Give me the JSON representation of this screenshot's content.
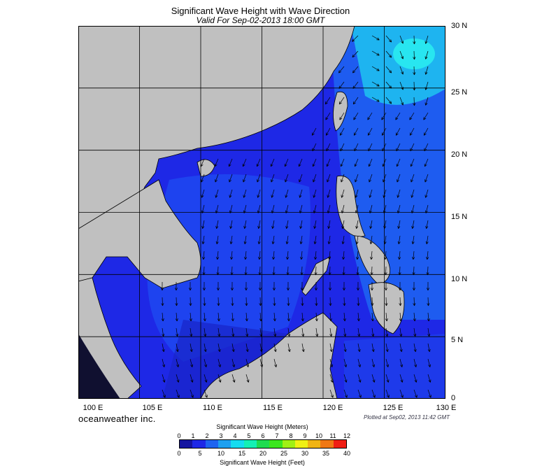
{
  "title": "Significant Wave Height with Wave Direction",
  "subtitle": "Valid For Sep-02-2013 18:00 GMT",
  "brand": "oceanweather inc.",
  "plotted": "Plotted at Sep02, 2013 11:42 GMT",
  "lat_labels": [
    "30 N",
    "25 N",
    "20 N",
    "15 N",
    "10 N",
    "5 N",
    "0"
  ],
  "lon_labels": [
    "100 E",
    "105 E",
    "110 E",
    "115 E",
    "120 E",
    "125 E",
    "130 E"
  ],
  "colorbar": {
    "title_meters": "Significant Wave Height (Meters)",
    "title_feet": "Significant Wave Height (Feet)",
    "meters_ticks": [
      "0",
      "1",
      "2",
      "3",
      "4",
      "5",
      "6",
      "7",
      "8",
      "9",
      "10",
      "11",
      "12"
    ],
    "feet_ticks": [
      "0",
      "5",
      "10",
      "15",
      "20",
      "25",
      "30",
      "35",
      "40"
    ],
    "colors": [
      "#1414a0",
      "#1e28e6",
      "#1e64f0",
      "#1ea0f0",
      "#14dcf0",
      "#14f0b4",
      "#1edc50",
      "#3ce61e",
      "#a0f014",
      "#f0f014",
      "#f0b414",
      "#f07814",
      "#f01e14"
    ]
  },
  "colors": {
    "land": "#c0c0c0",
    "sea_low": "#1e28e6",
    "sea_mid": "#1e50f0",
    "sea_high": "#1ed2f0",
    "grid": "#000000"
  }
}
